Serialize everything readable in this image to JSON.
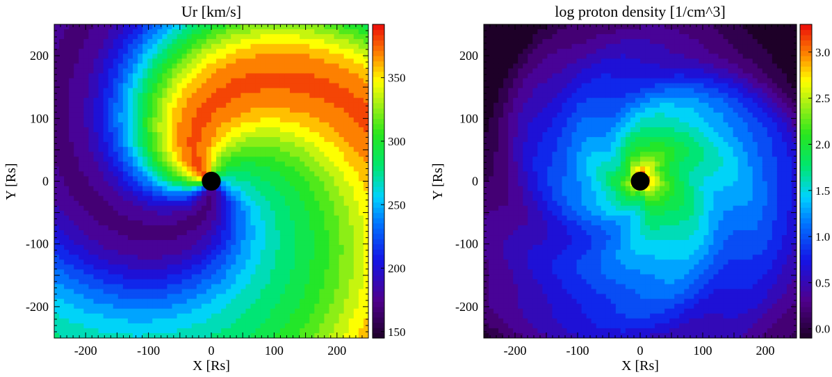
{
  "chart_data": [
    {
      "type": "heatmap",
      "title": "Ur [km/s]",
      "xlabel": "X [Rs]",
      "ylabel": "Y [Rs]",
      "xlim": [
        -250,
        250
      ],
      "ylim": [
        -250,
        250
      ],
      "xticks": [
        -200,
        -100,
        0,
        100,
        200
      ],
      "yticks": [
        -200,
        -100,
        0,
        100,
        200
      ],
      "colorbar": {
        "range": [
          145,
          392
        ],
        "ticks": [
          "150",
          "200",
          "250",
          "300",
          "350"
        ],
        "tick_values": [
          150,
          200,
          250,
          300,
          350
        ]
      },
      "central_body": {
        "center": [
          0,
          0
        ],
        "radius_rs": 15,
        "color": "#000000"
      },
      "colormap": "rainbow"
    },
    {
      "type": "heatmap",
      "title": "log proton density [1/cm^3]",
      "xlabel": "X [Rs]",
      "ylabel": "Y [Rs]",
      "xlim": [
        -250,
        250
      ],
      "ylim": [
        -250,
        250
      ],
      "xticks": [
        -200,
        -100,
        0,
        100,
        200
      ],
      "yticks": [
        -200,
        -100,
        0,
        100,
        200
      ],
      "colorbar": {
        "range": [
          -0.1,
          3.3
        ],
        "ticks": [
          "0.0",
          "0.5",
          "1.0",
          "1.5",
          "2.0",
          "2.5",
          "3.0"
        ],
        "tick_values": [
          0,
          0.5,
          1.0,
          1.5,
          2.0,
          2.5,
          3.0
        ]
      },
      "central_body": {
        "center": [
          0,
          0
        ],
        "radius_rs": 15,
        "color": "#000000"
      },
      "colormap": "rainbow"
    }
  ]
}
